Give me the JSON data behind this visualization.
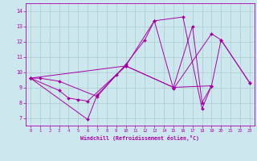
{
  "background_color": "#cce8ee",
  "line_color": "#aa00aa",
  "grid_color": "#aacccc",
  "xlabel": "Windchill (Refroidissement éolien,°C)",
  "xlim": [
    -0.5,
    23.5
  ],
  "ylim": [
    6.5,
    14.5
  ],
  "yticks": [
    7,
    8,
    9,
    10,
    11,
    12,
    13,
    14
  ],
  "xticks": [
    0,
    1,
    2,
    3,
    4,
    5,
    6,
    7,
    8,
    9,
    10,
    11,
    12,
    13,
    14,
    15,
    16,
    17,
    18,
    19,
    20,
    21,
    22,
    23
  ],
  "series": [
    [
      [
        0,
        9.6
      ],
      [
        1,
        9.6
      ],
      [
        3,
        9.4
      ],
      [
        7,
        8.4
      ],
      [
        10,
        10.5
      ],
      [
        12,
        12.1
      ],
      [
        13,
        13.35
      ],
      [
        15,
        8.9
      ],
      [
        19,
        12.5
      ],
      [
        20,
        12.1
      ],
      [
        23,
        9.3
      ]
    ],
    [
      [
        0,
        9.6
      ],
      [
        6,
        6.9
      ],
      [
        7,
        8.5
      ],
      [
        9,
        9.8
      ],
      [
        10,
        10.4
      ],
      [
        13,
        13.35
      ],
      [
        16,
        13.6
      ],
      [
        18,
        7.6
      ],
      [
        19,
        9.1
      ]
    ],
    [
      [
        0,
        9.6
      ],
      [
        3,
        8.8
      ],
      [
        4,
        8.3
      ],
      [
        5,
        8.2
      ],
      [
        6,
        8.1
      ],
      [
        10,
        10.4
      ],
      [
        15,
        9.0
      ],
      [
        17,
        13.0
      ],
      [
        18,
        8.0
      ],
      [
        19,
        9.1
      ]
    ],
    [
      [
        0,
        9.6
      ],
      [
        10,
        10.4
      ],
      [
        15,
        9.0
      ],
      [
        19,
        9.1
      ],
      [
        20,
        12.1
      ],
      [
        23,
        9.3
      ]
    ]
  ]
}
